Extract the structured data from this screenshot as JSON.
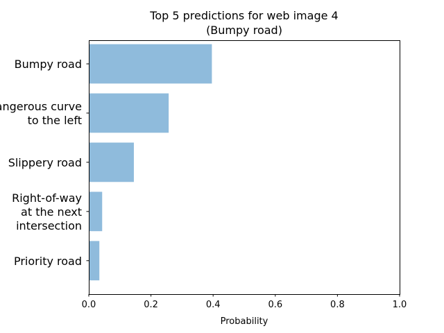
{
  "chart_data": {
    "type": "bar",
    "orientation": "horizontal",
    "title": [
      "Top 5 predictions for web image 4",
      "(Bumpy road)"
    ],
    "categories": [
      [
        "Bumpy road"
      ],
      [
        "Dangerous curve",
        "to the left"
      ],
      [
        "Slippery road"
      ],
      [
        "Right-of-way",
        "at the next",
        "intersection"
      ],
      [
        "Priority road"
      ]
    ],
    "values": [
      0.396,
      0.257,
      0.145,
      0.043,
      0.034
    ],
    "xlabel": "Probability",
    "ylabel": "",
    "xlim": [
      0.0,
      1.0
    ],
    "xticks": [
      "0.0",
      "0.2",
      "0.4",
      "0.6",
      "0.8",
      "1.0"
    ],
    "bar_color": "#8fbbdc",
    "grid": false,
    "legend": "none"
  }
}
